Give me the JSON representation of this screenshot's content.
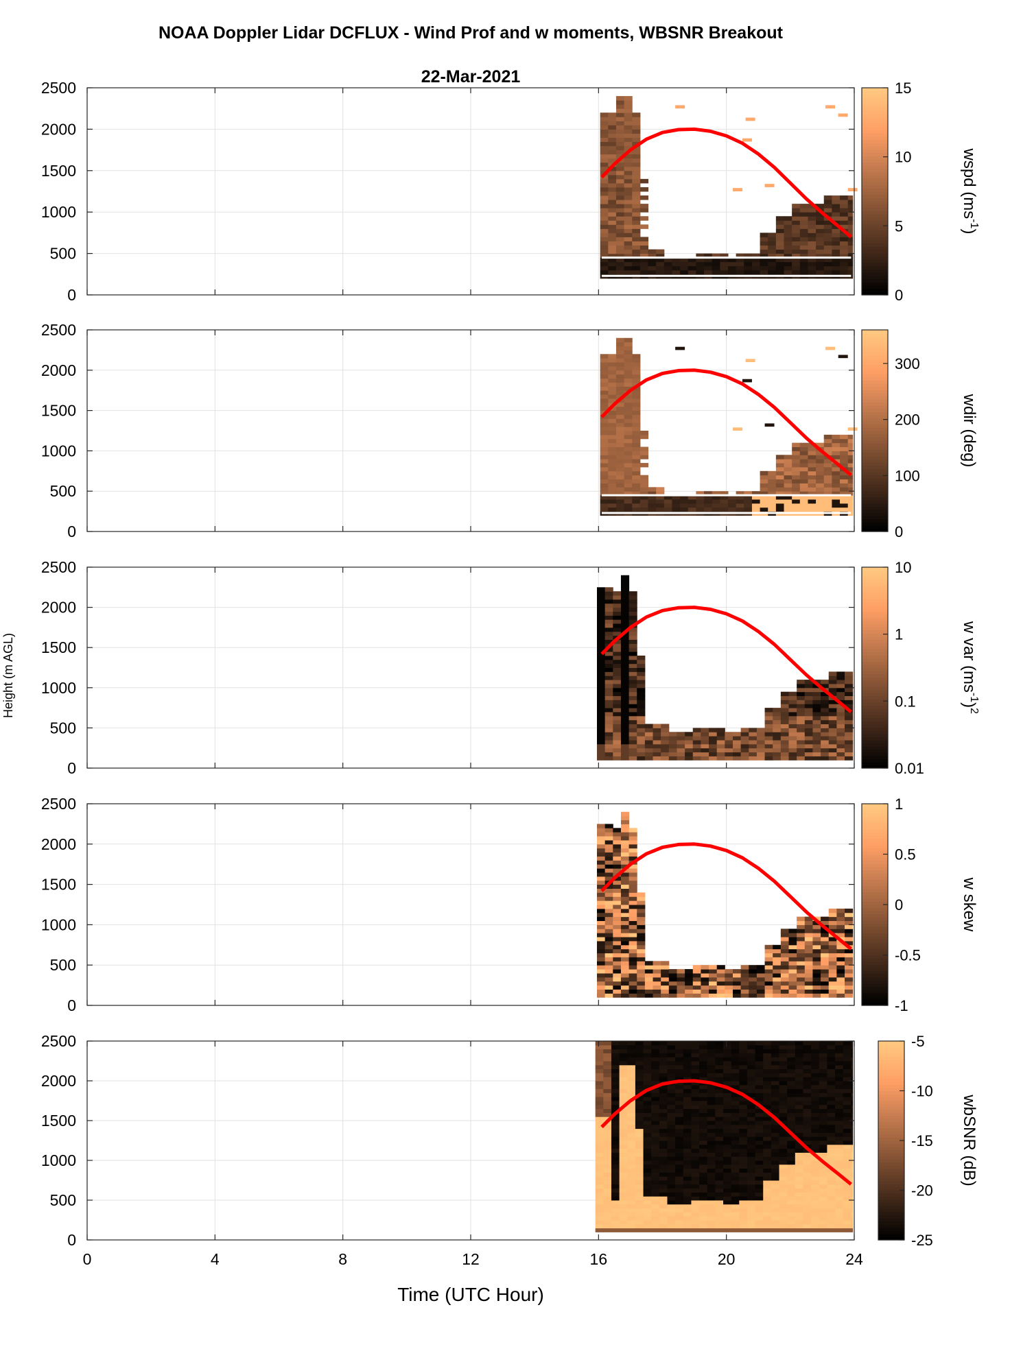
{
  "chart_data": {
    "type": "heatmap",
    "title": "NOAA Doppler Lidar DCFLUX - Wind Prof and w moments, WBSNR Breakout",
    "date": "22-Mar-2021",
    "xlabel": "Time (UTC Hour)",
    "ylabel": "Height (m AGL)",
    "xlim": [
      0,
      24
    ],
    "xticks": [
      "0",
      "4",
      "8",
      "12",
      "16",
      "20",
      "24"
    ],
    "ylim": [
      0,
      2500
    ],
    "yticks": [
      "0",
      "500",
      "1000",
      "1500",
      "2000",
      "2500"
    ],
    "grid": true,
    "colormap": "copper",
    "overlay_line": {
      "color": "#ff0000",
      "x": [
        16.1,
        16.5,
        17,
        17.5,
        18,
        18.5,
        19,
        19.5,
        20,
        20.5,
        21,
        21.5,
        22,
        22.5,
        23,
        23.5,
        23.9
      ],
      "y": [
        1420,
        1580,
        1750,
        1880,
        1960,
        1995,
        2000,
        1975,
        1920,
        1830,
        1700,
        1540,
        1350,
        1160,
        990,
        830,
        700
      ]
    },
    "panels": [
      {
        "name": "wspd",
        "cbar_label": "wspd (ms",
        "cbar_label_sup": "-1",
        "cbar_label_close": ")",
        "clim": [
          0,
          15
        ],
        "cbar_ticks": [
          "0",
          "5",
          "10",
          "15"
        ],
        "scale": "linear"
      },
      {
        "name": "wdir",
        "cbar_label": "wdir (deg)",
        "clim": [
          0,
          360
        ],
        "cbar_ticks": [
          "0",
          "100",
          "200",
          "300"
        ],
        "scale": "linear"
      },
      {
        "name": "wvar",
        "cbar_label": "w var (ms",
        "cbar_label_sup": "-1",
        "cbar_label_close": ")",
        "cbar_label_sup2": "2",
        "clim": [
          0.01,
          10
        ],
        "cbar_ticks": [
          "0.01",
          "0.1",
          "1",
          "10"
        ],
        "scale": "log"
      },
      {
        "name": "wskew",
        "cbar_label": "w skew",
        "clim": [
          -1,
          1
        ],
        "cbar_ticks": [
          "-1",
          "-0.5",
          "0",
          "0.5",
          "1"
        ],
        "scale": "linear"
      },
      {
        "name": "wbsnr",
        "cbar_label": "wbSNR (dB)",
        "clim": [
          -25,
          -5
        ],
        "cbar_ticks": [
          "-25",
          "-20",
          "-15",
          "-10",
          "-5"
        ],
        "scale": "linear"
      }
    ]
  }
}
